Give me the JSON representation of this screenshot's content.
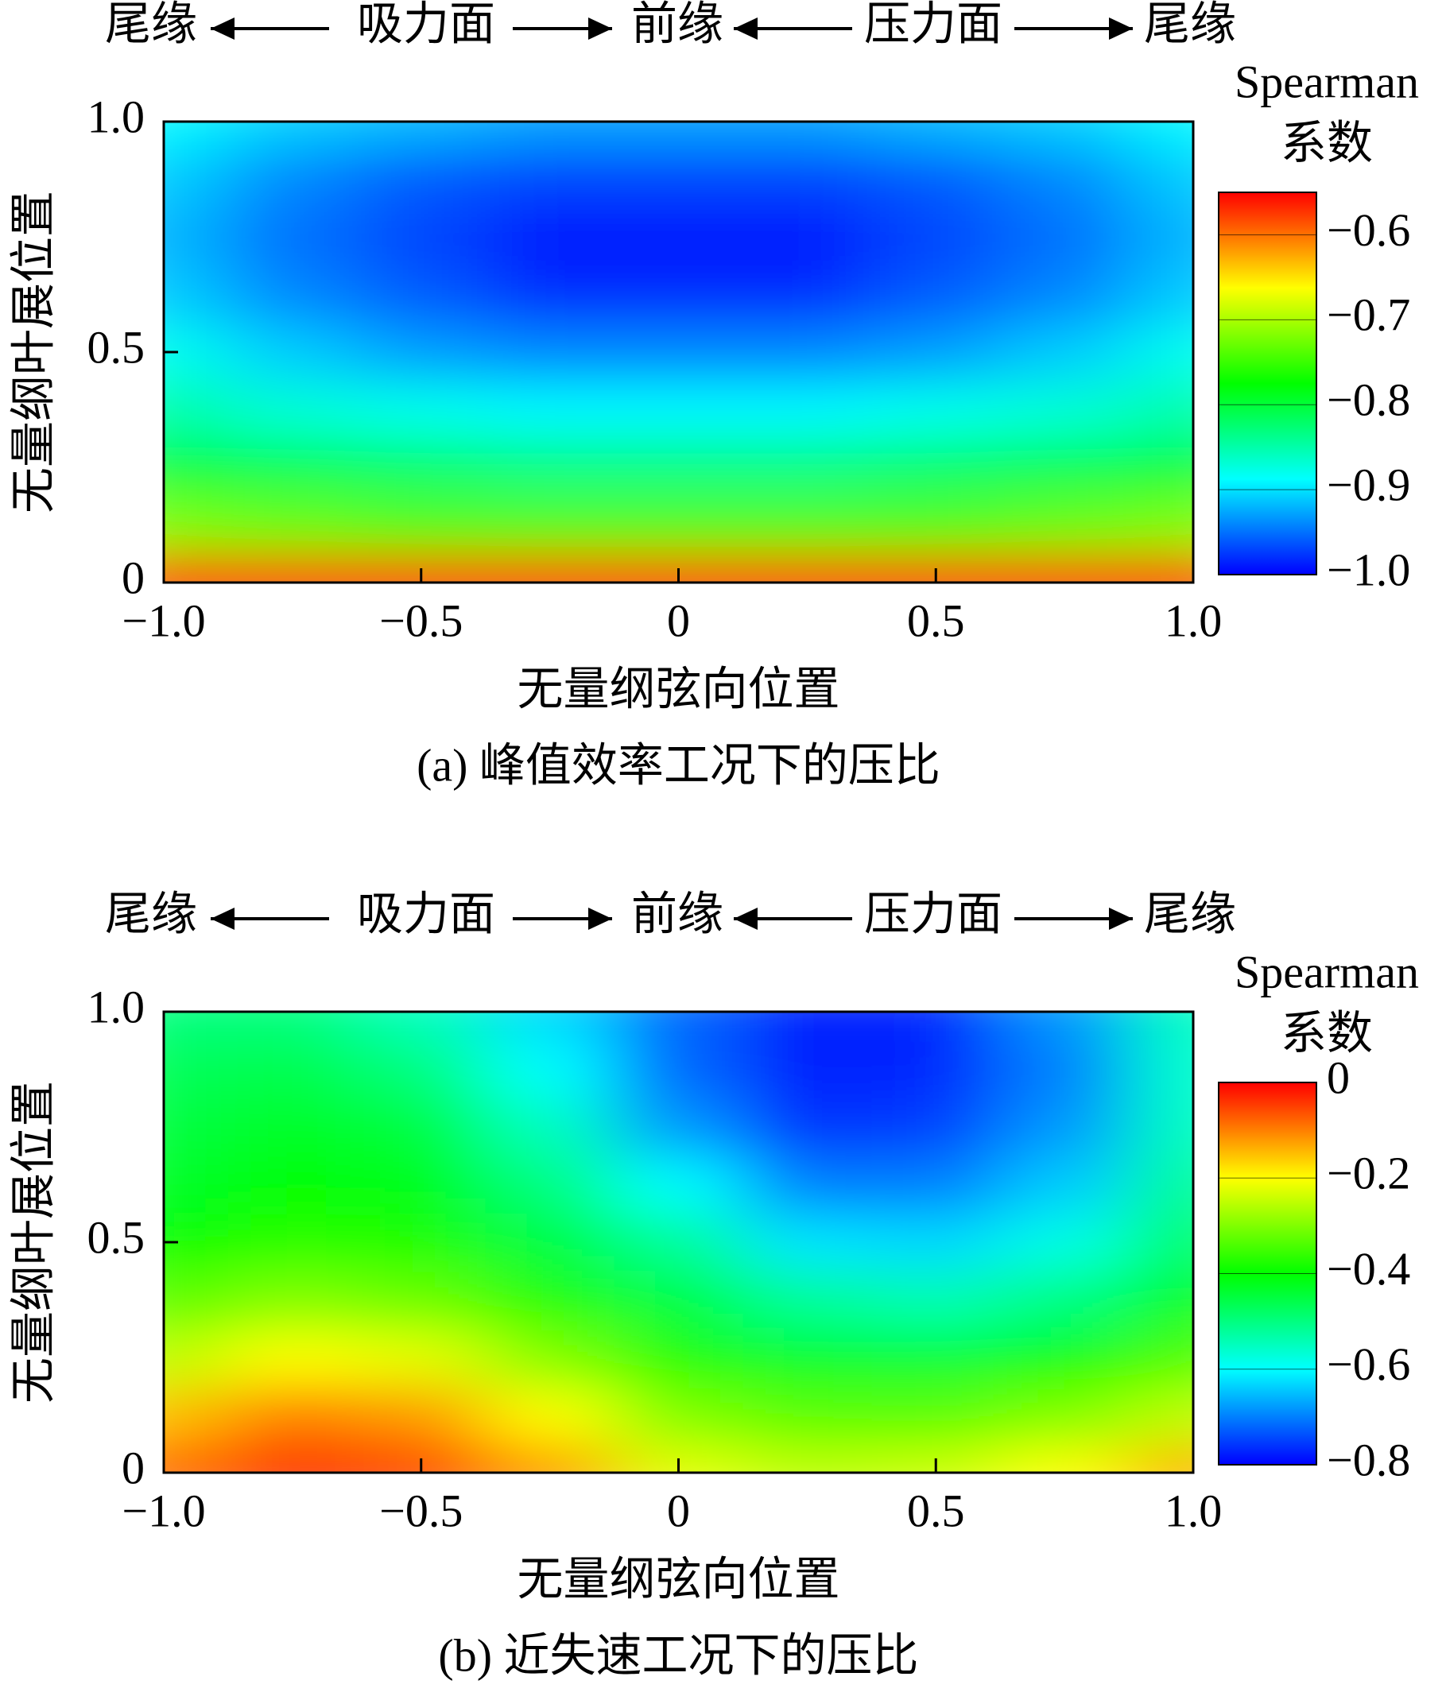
{
  "chart_data": [
    {
      "type": "heatmap",
      "title": "(a) 峰值效率工况下的压比",
      "annotations": [
        "尾缘",
        "吸力面",
        "前缘",
        "压力面",
        "尾缘"
      ],
      "xlabel": "无量纲弦向位置",
      "ylabel": "无量纲叶展位置",
      "x": [
        -1,
        -0.75,
        -0.5,
        -0.25,
        0,
        0.25,
        0.5,
        0.75,
        1
      ],
      "y": [
        0,
        0.125,
        0.25,
        0.375,
        0.5,
        0.625,
        0.75,
        0.875,
        1
      ],
      "z": [
        [
          -0.57,
          -0.57,
          -0.57,
          -0.57,
          -0.57,
          -0.57,
          -0.57,
          -0.57,
          -0.57
        ],
        [
          -0.72,
          -0.73,
          -0.74,
          -0.74,
          -0.74,
          -0.74,
          -0.74,
          -0.73,
          -0.72
        ],
        [
          -0.8,
          -0.81,
          -0.82,
          -0.83,
          -0.83,
          -0.83,
          -0.82,
          -0.81,
          -0.8
        ],
        [
          -0.85,
          -0.87,
          -0.88,
          -0.89,
          -0.89,
          -0.89,
          -0.88,
          -0.87,
          -0.85
        ],
        [
          -0.88,
          -0.91,
          -0.93,
          -0.94,
          -0.94,
          -0.94,
          -0.93,
          -0.91,
          -0.88
        ],
        [
          -0.91,
          -0.94,
          -0.96,
          -0.98,
          -0.98,
          -0.98,
          -0.96,
          -0.94,
          -0.91
        ],
        [
          -0.92,
          -0.95,
          -0.97,
          -0.99,
          -0.99,
          -0.99,
          -0.97,
          -0.95,
          -0.92
        ],
        [
          -0.91,
          -0.94,
          -0.96,
          -0.97,
          -0.97,
          -0.97,
          -0.96,
          -0.94,
          -0.91
        ],
        [
          -0.89,
          -0.91,
          -0.92,
          -0.93,
          -0.93,
          -0.93,
          -0.92,
          -0.91,
          -0.89
        ]
      ],
      "xlim": [
        -1,
        1
      ],
      "ylim": [
        0,
        1
      ],
      "xticks": [
        {
          "value": -1,
          "label": "−1.0"
        },
        {
          "value": -0.5,
          "label": "−0.5"
        },
        0,
        0.5,
        {
          "value": 1,
          "label": "1.0"
        }
      ],
      "yticks": [
        0,
        0.5,
        {
          "value": 1,
          "label": "1.0"
        }
      ],
      "colorbar_title": [
        "Spearman",
        "系数"
      ],
      "zlim": [
        -1,
        -0.55
      ],
      "zticks": [
        {
          "value": -0.6,
          "label": "−0.6"
        },
        {
          "value": -0.7,
          "label": "−0.7"
        },
        {
          "value": -0.8,
          "label": "−0.8"
        },
        {
          "value": -0.9,
          "label": "−0.9"
        },
        {
          "value": -1,
          "label": "−1.0"
        }
      ],
      "colormap": [
        "#0000ff",
        "#00ffff",
        "#00ff00",
        "#ffff00",
        "#ff0000"
      ]
    },
    {
      "type": "heatmap",
      "title": "(b) 近失速工况下的压比",
      "annotations": [
        "尾缘",
        "吸力面",
        "前缘",
        "压力面",
        "尾缘"
      ],
      "xlabel": "无量纲弦向位置",
      "ylabel": "无量纲叶展位置",
      "x": [
        -1,
        -0.75,
        -0.5,
        -0.25,
        0,
        0.25,
        0.5,
        0.75,
        1
      ],
      "y": [
        0,
        0.125,
        0.25,
        0.375,
        0.5,
        0.625,
        0.75,
        0.875,
        1
      ],
      "z": [
        [
          -0.08,
          -0.03,
          -0.05,
          -0.12,
          -0.22,
          -0.25,
          -0.24,
          -0.2,
          -0.14
        ],
        [
          -0.15,
          -0.1,
          -0.12,
          -0.2,
          -0.3,
          -0.33,
          -0.33,
          -0.3,
          -0.25
        ],
        [
          -0.25,
          -0.2,
          -0.22,
          -0.3,
          -0.38,
          -0.43,
          -0.44,
          -0.4,
          -0.34
        ],
        [
          -0.33,
          -0.3,
          -0.32,
          -0.38,
          -0.45,
          -0.52,
          -0.54,
          -0.5,
          -0.42
        ],
        [
          -0.4,
          -0.37,
          -0.38,
          -0.45,
          -0.52,
          -0.62,
          -0.63,
          -0.58,
          -0.48
        ],
        [
          -0.43,
          -0.4,
          -0.42,
          -0.5,
          -0.6,
          -0.7,
          -0.7,
          -0.64,
          -0.52
        ],
        [
          -0.45,
          -0.43,
          -0.45,
          -0.55,
          -0.68,
          -0.76,
          -0.75,
          -0.68,
          -0.55
        ],
        [
          -0.47,
          -0.46,
          -0.5,
          -0.6,
          -0.72,
          -0.78,
          -0.77,
          -0.7,
          -0.56
        ],
        [
          -0.5,
          -0.5,
          -0.55,
          -0.63,
          -0.72,
          -0.78,
          -0.77,
          -0.68,
          -0.55
        ]
      ],
      "xlim": [
        -1,
        1
      ],
      "ylim": [
        0,
        1
      ],
      "xticks": [
        {
          "value": -1,
          "label": "−1.0"
        },
        {
          "value": -0.5,
          "label": "−0.5"
        },
        0,
        0.5,
        {
          "value": 1,
          "label": "1.0"
        }
      ],
      "yticks": [
        0,
        0.5,
        {
          "value": 1,
          "label": "1.0"
        }
      ],
      "colorbar_title": [
        "Spearman",
        "系数"
      ],
      "zlim": [
        -0.8,
        0
      ],
      "zticks": [
        0,
        {
          "value": -0.2,
          "label": "−0.2"
        },
        {
          "value": -0.4,
          "label": "−0.4"
        },
        {
          "value": -0.6,
          "label": "−0.6"
        },
        {
          "value": -0.8,
          "label": "−0.8"
        }
      ],
      "colormap": [
        "#0000ff",
        "#00ffff",
        "#00ff00",
        "#ffff00",
        "#ff0000"
      ]
    }
  ]
}
